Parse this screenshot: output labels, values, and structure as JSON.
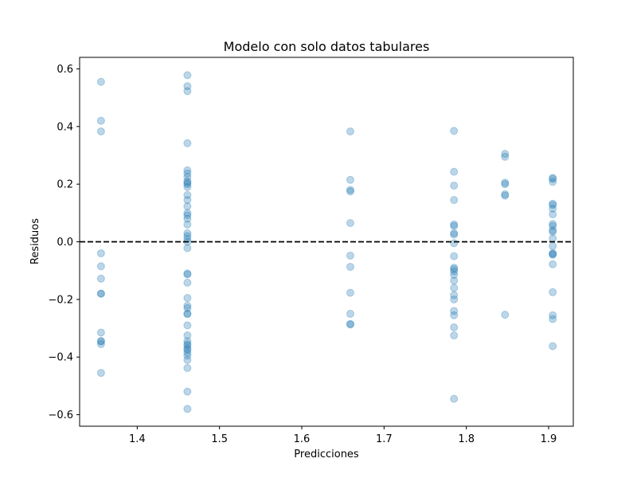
{
  "chart_data": {
    "type": "scatter",
    "title": "Modelo con solo datos tabulares",
    "xlabel": "Predicciones",
    "ylabel": "Residuos",
    "xlim": [
      1.33,
      1.93
    ],
    "ylim": [
      -0.64,
      0.64
    ],
    "x_ticks": [
      1.4,
      1.5,
      1.6,
      1.7,
      1.8,
      1.9
    ],
    "x_tick_labels": [
      "1.4",
      "1.5",
      "1.6",
      "1.7",
      "1.8",
      "1.9"
    ],
    "y_ticks": [
      0.6,
      0.4,
      0.2,
      0.0,
      -0.2,
      -0.4,
      -0.6
    ],
    "y_tick_labels": [
      "0.6",
      "0.4",
      "0.2",
      "0.0",
      "−0.2",
      "−0.4",
      "−0.6"
    ],
    "grid": false,
    "reference_line": {
      "y": 0.0,
      "style": "dashed",
      "color": "#000000"
    },
    "point_color": "#1f77b4",
    "point_alpha": 0.3,
    "series": [
      {
        "points": [
          [
            1.356,
            0.555
          ],
          [
            1.356,
            0.42
          ],
          [
            1.356,
            0.383
          ],
          [
            1.356,
            -0.04
          ],
          [
            1.356,
            -0.085
          ],
          [
            1.356,
            -0.128
          ],
          [
            1.356,
            -0.18
          ],
          [
            1.356,
            -0.18
          ],
          [
            1.356,
            -0.315
          ],
          [
            1.356,
            -0.345
          ],
          [
            1.356,
            -0.345
          ],
          [
            1.356,
            -0.355
          ],
          [
            1.356,
            -0.455
          ],
          [
            1.461,
            0.578
          ],
          [
            1.461,
            0.54
          ],
          [
            1.461,
            0.523
          ],
          [
            1.461,
            0.342
          ],
          [
            1.461,
            0.248
          ],
          [
            1.461,
            0.237
          ],
          [
            1.461,
            0.225
          ],
          [
            1.461,
            0.21
          ],
          [
            1.461,
            0.205
          ],
          [
            1.461,
            0.2
          ],
          [
            1.461,
            0.19
          ],
          [
            1.461,
            0.162
          ],
          [
            1.461,
            0.145
          ],
          [
            1.461,
            0.123
          ],
          [
            1.461,
            0.1
          ],
          [
            1.461,
            0.092
          ],
          [
            1.461,
            0.08
          ],
          [
            1.461,
            0.06
          ],
          [
            1.461,
            0.03
          ],
          [
            1.461,
            0.02
          ],
          [
            1.461,
            0.01
          ],
          [
            1.461,
            0.0
          ],
          [
            1.461,
            -0.022
          ],
          [
            1.461,
            -0.11
          ],
          [
            1.461,
            -0.113
          ],
          [
            1.461,
            -0.142
          ],
          [
            1.461,
            -0.195
          ],
          [
            1.461,
            -0.222
          ],
          [
            1.461,
            -0.23
          ],
          [
            1.461,
            -0.25
          ],
          [
            1.461,
            -0.25
          ],
          [
            1.461,
            -0.29
          ],
          [
            1.461,
            -0.325
          ],
          [
            1.461,
            -0.345
          ],
          [
            1.461,
            -0.355
          ],
          [
            1.461,
            -0.36
          ],
          [
            1.461,
            -0.37
          ],
          [
            1.461,
            -0.375
          ],
          [
            1.461,
            -0.385
          ],
          [
            1.461,
            -0.395
          ],
          [
            1.461,
            -0.41
          ],
          [
            1.461,
            -0.438
          ],
          [
            1.461,
            -0.52
          ],
          [
            1.461,
            -0.58
          ],
          [
            1.659,
            0.383
          ],
          [
            1.659,
            0.215
          ],
          [
            1.659,
            0.18
          ],
          [
            1.659,
            0.175
          ],
          [
            1.659,
            0.065
          ],
          [
            1.659,
            -0.048
          ],
          [
            1.659,
            -0.087
          ],
          [
            1.659,
            -0.177
          ],
          [
            1.659,
            -0.25
          ],
          [
            1.659,
            -0.285
          ],
          [
            1.659,
            -0.287
          ],
          [
            1.785,
            0.385
          ],
          [
            1.785,
            0.243
          ],
          [
            1.785,
            0.195
          ],
          [
            1.785,
            0.145
          ],
          [
            1.785,
            0.06
          ],
          [
            1.785,
            0.055
          ],
          [
            1.785,
            0.03
          ],
          [
            1.785,
            0.025
          ],
          [
            1.785,
            -0.005
          ],
          [
            1.785,
            -0.05
          ],
          [
            1.785,
            -0.09
          ],
          [
            1.785,
            -0.095
          ],
          [
            1.785,
            -0.103
          ],
          [
            1.785,
            -0.115
          ],
          [
            1.785,
            -0.135
          ],
          [
            1.785,
            -0.16
          ],
          [
            1.785,
            -0.185
          ],
          [
            1.785,
            -0.2
          ],
          [
            1.785,
            -0.24
          ],
          [
            1.785,
            -0.255
          ],
          [
            1.785,
            -0.297
          ],
          [
            1.785,
            -0.325
          ],
          [
            1.785,
            -0.545
          ],
          [
            1.847,
            0.305
          ],
          [
            1.847,
            0.295
          ],
          [
            1.847,
            0.205
          ],
          [
            1.847,
            0.2
          ],
          [
            1.847,
            0.165
          ],
          [
            1.847,
            0.16
          ],
          [
            1.847,
            -0.253
          ],
          [
            1.905,
            0.222
          ],
          [
            1.905,
            0.218
          ],
          [
            1.905,
            0.208
          ],
          [
            1.905,
            0.132
          ],
          [
            1.905,
            0.128
          ],
          [
            1.905,
            0.115
          ],
          [
            1.905,
            0.095
          ],
          [
            1.905,
            0.062
          ],
          [
            1.905,
            0.055
          ],
          [
            1.905,
            0.04
          ],
          [
            1.905,
            0.035
          ],
          [
            1.905,
            0.012
          ],
          [
            1.905,
            -0.015
          ],
          [
            1.905,
            -0.04
          ],
          [
            1.905,
            -0.042
          ],
          [
            1.905,
            -0.045
          ],
          [
            1.905,
            -0.078
          ],
          [
            1.905,
            -0.175
          ],
          [
            1.905,
            -0.255
          ],
          [
            1.905,
            -0.268
          ],
          [
            1.905,
            -0.362
          ]
        ]
      }
    ]
  }
}
